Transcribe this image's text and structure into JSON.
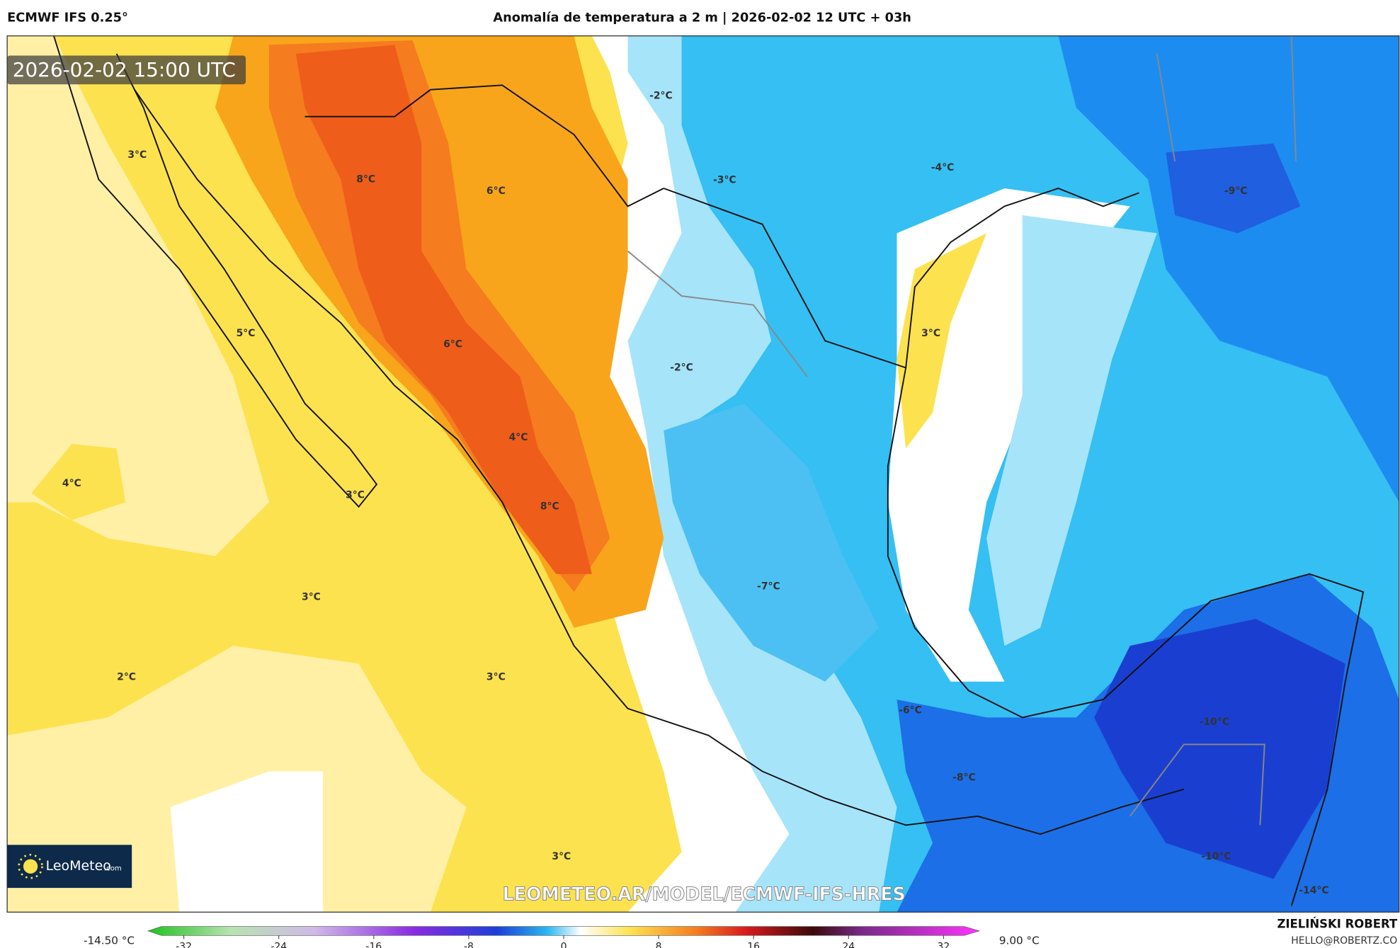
{
  "header": {
    "model": "ECMWF IFS 0.25°",
    "title": "Anomalía de temperatura a 2 m | 2026-02-02 12 UTC + 03h"
  },
  "map": {
    "valid_time": "2026-02-02 15:00 UTC",
    "labels": [
      "-2°C",
      "-3°C",
      "-4°C",
      "-9°C",
      "3°C",
      "8°C",
      "6°C",
      "5°C",
      "6°C",
      "-2°C",
      "3°C",
      "4°C",
      "4°C",
      "3°C",
      "8°C",
      "-7°C",
      "3°C",
      "2°C",
      "3°C",
      "-6°C",
      "-8°C",
      "-10°C",
      "-10°C",
      "-14°C",
      "3°C"
    ],
    "watermark": "LEOMETEO.AR/MODEL/ECMWF-IFS-HRES",
    "brand": "LeoMeteo",
    "brand_suffix": ".com"
  },
  "colorbar": {
    "min_label": "-14.50 °C",
    "max_label": "9.00 °C",
    "ticks": [
      -32,
      -24,
      -16,
      -8,
      0,
      8,
      16,
      24,
      32
    ]
  },
  "footer": {
    "author": "ZIELIŃSKI ROBERT",
    "email": "HELLO@ROBERTZ.CO"
  }
}
